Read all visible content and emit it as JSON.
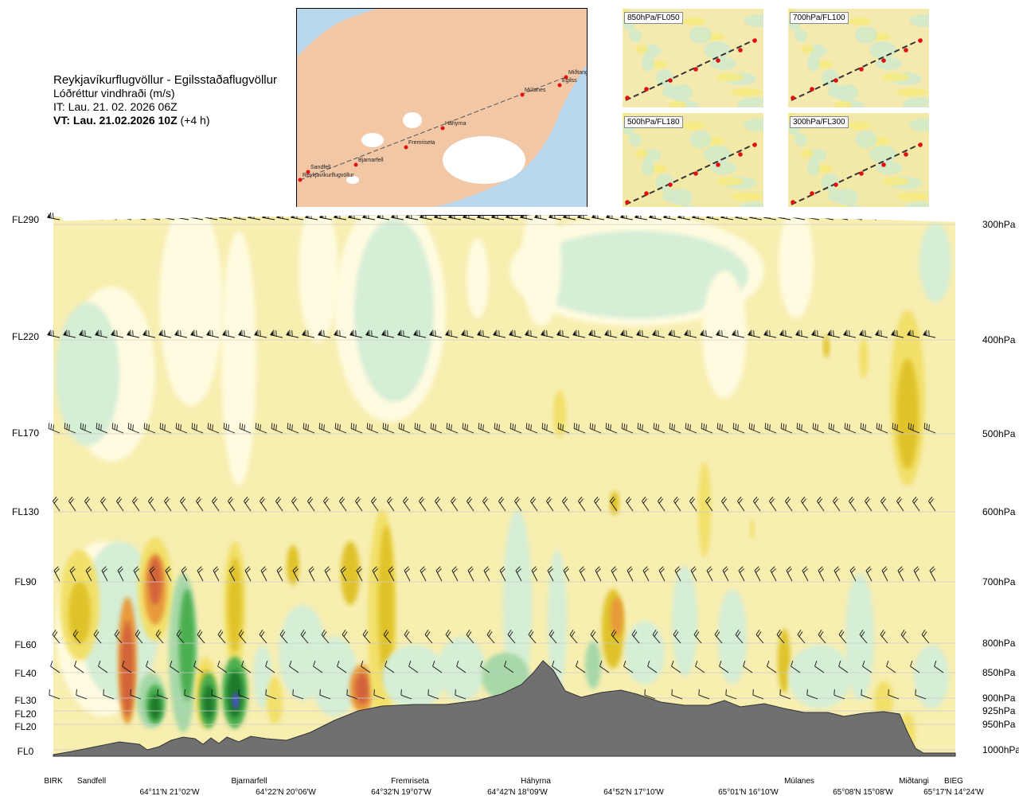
{
  "header": {
    "title": "Reykjavíkurflugvöllur - Egilsstaðaflugvöllur",
    "subtitle": "Lóðréttur vindhraði (m/s)",
    "issue_time": "IT: Lau. 21. 02. 2026 06Z",
    "valid_time": "VT: Lau. 21.02.2026 10Z",
    "valid_offset": "(+4 h)"
  },
  "overview_map": {
    "route_points": [
      "Reykjavíkurflugvöllur",
      "Sandfell",
      "Bjarnarfell",
      "Fremriseta",
      "Háhyrna",
      "Múlanes",
      "Egilss",
      "Miðtangi"
    ],
    "colors": {
      "sea": "#b8d6ec",
      "land": "#f2c7a6",
      "ice": "#ffffff",
      "route": "#555555",
      "points": "#e01010"
    }
  },
  "mini_maps": [
    {
      "label": "850hPa/FL050"
    },
    {
      "label": "700hPa/FL100"
    },
    {
      "label": "500hPa/FL180"
    },
    {
      "label": "300hPa/FL300"
    }
  ],
  "chart_data": {
    "type": "heatmap",
    "title": "Lóðréttur vindhraði (m/s)",
    "left_axis_labels": [
      "FL290",
      "FL220",
      "FL170",
      "FL130",
      "FL90",
      "FL60",
      "FL40",
      "FL30",
      "FL20",
      "FL20",
      "FL0"
    ],
    "right_axis_labels": [
      "300hPa",
      "400hPa",
      "500hPa",
      "600hPa",
      "700hPa",
      "800hPa",
      "850hPa",
      "900hPa",
      "925hPa",
      "950hPa",
      "1000hPa"
    ],
    "pressure_levels_hpa": [
      300,
      400,
      500,
      600,
      700,
      800,
      850,
      900,
      925,
      950,
      1000
    ],
    "locations": [
      "BIRK",
      "Sandfell",
      "Bjarnarfell",
      "Fremriseta",
      "Háhyrna",
      "Múlanes",
      "Miðtangi",
      "BIEG"
    ],
    "coordinates": [
      "64°11'N 21°02'W",
      "64°22'N 20°06'W",
      "64°32'N 19°07'W",
      "64°42'N 18°09'W",
      "64°52'N 17°10'W",
      "65°01'N 16°10'W",
      "65°08'N 15°08'W",
      "65°17'N 14°24'W"
    ],
    "colors": {
      "background": "#f7eeb0",
      "weak_down": "#fffbe0",
      "down_light": "#d5eed6",
      "down_mid": "#a6d8a8",
      "down_strong": "#4caf50",
      "down_very_strong": "#1b7a2b",
      "down_extreme": "#4b4bd6",
      "up_light": "#f2e06a",
      "up_mid": "#e0c32c",
      "up_strong": "#e89a3a",
      "up_very_strong": "#d2633a",
      "terrain": "#707070",
      "grid": "#cccccc"
    }
  }
}
